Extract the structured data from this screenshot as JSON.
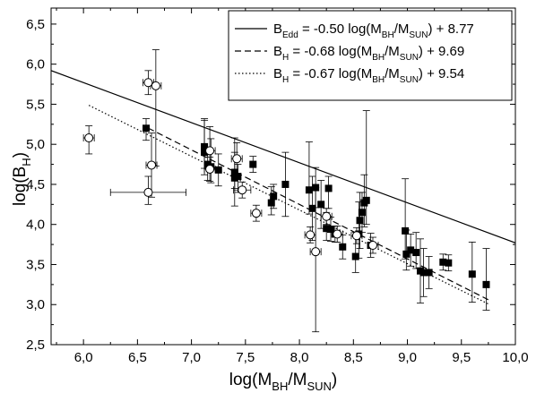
{
  "chart_data": {
    "type": "scatter",
    "xlabel": "log(M",
    "xlabel_sub": "BH",
    "xlabel_mid": "/M",
    "xlabel_sub2": "SUN",
    "xlabel_end": ")",
    "ylabel": "log(B",
    "ylabel_sub": "H",
    "ylabel_end": ")",
    "xlim": [
      5.7,
      10.0
    ],
    "ylim": [
      2.5,
      6.7
    ],
    "x_ticks": [
      6.0,
      6.5,
      7.0,
      7.5,
      8.0,
      8.5,
      9.0,
      9.5,
      10.0
    ],
    "x_tick_labels": [
      "6,0",
      "6,5",
      "7,0",
      "7,5",
      "8,0",
      "8,5",
      "9,0",
      "9,5",
      "10,0"
    ],
    "y_ticks": [
      2.5,
      3.0,
      3.5,
      4.0,
      4.5,
      5.0,
      5.5,
      6.0,
      6.5
    ],
    "y_tick_labels": [
      "2,5",
      "3,0",
      "3,5",
      "4,0",
      "4,5",
      "5,0",
      "5,5",
      "6,0",
      "6,5"
    ],
    "legend": [
      {
        "style": "solid",
        "p1": "B",
        "s1": "Edd",
        "p2": " = -0.50 log(M",
        "s2": "BH",
        "p3": "/M",
        "s3": "SUN",
        "p4": ") + 8.77"
      },
      {
        "style": "dashed",
        "p1": "B",
        "s1": "H",
        "p2": " = -0.68 log(M",
        "s2": "BH",
        "p3": "/M",
        "s3": "SUN",
        "p4": ") + 9.69"
      },
      {
        "style": "dotted",
        "p1": "B",
        "s1": "H",
        "p2": " = -0.67 log(M",
        "s2": "BH",
        "p3": "/M",
        "s3": "SUN",
        "p4": ") + 9.54"
      }
    ],
    "lines": [
      {
        "style": "solid",
        "slope": -0.5,
        "intercept": 8.77,
        "x_range": [
          5.7,
          10.0
        ]
      },
      {
        "style": "dashed",
        "slope": -0.68,
        "intercept": 9.69,
        "x_range": [
          6.6,
          9.75
        ]
      },
      {
        "style": "dotted",
        "slope": -0.67,
        "intercept": 9.54,
        "x_range": [
          6.05,
          9.75
        ]
      }
    ],
    "series": [
      {
        "marker": "filled-square",
        "points": [
          {
            "x": 6.58,
            "y": 5.2,
            "yerr": [
              0.15,
              0.12
            ]
          },
          {
            "x": 7.12,
            "y": 4.97,
            "yerr": [
              0.35,
              0.35
            ]
          },
          {
            "x": 7.12,
            "y": 4.9,
            "yerr": [
              0.2,
              0.4
            ]
          },
          {
            "x": 7.15,
            "y": 4.75,
            "yerr": [
              0.2,
              0.2
            ]
          },
          {
            "x": 7.18,
            "y": 4.72,
            "yerr": [
              0.2,
              0.35
            ]
          },
          {
            "x": 7.25,
            "y": 4.68,
            "yerr": [
              0.2,
              0.2
            ]
          },
          {
            "x": 7.4,
            "y": 4.65,
            "yerr": [
              0.2,
              0.25
            ]
          },
          {
            "x": 7.4,
            "y": 4.58,
            "yerr": [
              0.35,
              0.5
            ]
          },
          {
            "x": 7.43,
            "y": 4.6,
            "yerr": [
              0.2,
              0.15
            ]
          },
          {
            "x": 7.57,
            "y": 4.75,
            "yerr": [
              0.1,
              0.1
            ]
          },
          {
            "x": 7.74,
            "y": 4.27,
            "yerr": [
              0.15,
              0.2
            ]
          },
          {
            "x": 7.76,
            "y": 4.35,
            "yerr": [
              0.15,
              0.15
            ]
          },
          {
            "x": 7.87,
            "y": 4.5,
            "yerr": [
              0.4,
              0.4
            ]
          },
          {
            "x": 8.09,
            "y": 4.43,
            "yerr": [
              0.3,
              0.6
            ]
          },
          {
            "x": 8.12,
            "y": 4.2,
            "yerr": [
              0.4,
              0.4
            ]
          },
          {
            "x": 8.15,
            "y": 4.46,
            "yerr": [
              0.25,
              0.25
            ]
          },
          {
            "x": 8.2,
            "y": 4.25,
            "yerr": [
              0.3,
              0.3
            ]
          },
          {
            "x": 8.25,
            "y": 3.95,
            "yerr": [
              0.15,
              0.2
            ]
          },
          {
            "x": 8.27,
            "y": 4.45,
            "yerr": [
              0.25,
              0.15
            ]
          },
          {
            "x": 8.29,
            "y": 3.94,
            "yerr": [
              0.15,
              0.15
            ]
          },
          {
            "x": 8.33,
            "y": 3.88,
            "yerr": [
              0.1,
              0.1
            ]
          },
          {
            "x": 8.4,
            "y": 3.72,
            "yerr": [
              0.15,
              0.15
            ]
          },
          {
            "x": 8.52,
            "y": 3.6,
            "yerr": [
              0.2,
              0.3
            ]
          },
          {
            "x": 8.55,
            "y": 3.88,
            "yerr": [
              0.3,
              0.4
            ]
          },
          {
            "x": 8.56,
            "y": 4.05,
            "yerr": [
              0.35,
              0.35
            ]
          },
          {
            "x": 8.58,
            "y": 4.15,
            "yerr": [
              0.25,
              0.25
            ]
          },
          {
            "x": 8.6,
            "y": 4.27,
            "yerr": [
              0.3,
              0.35
            ]
          },
          {
            "x": 8.62,
            "y": 4.3,
            "yerr": [
              0.3,
              1.12
            ]
          },
          {
            "x": 8.66,
            "y": 3.74,
            "yerr": [
              0.15,
              0.15
            ]
          },
          {
            "x": 8.98,
            "y": 3.92,
            "yerr": [
              0.35,
              0.65
            ]
          },
          {
            "x": 8.99,
            "y": 3.63,
            "yerr": [
              0.2,
              0.3
            ]
          },
          {
            "x": 9.03,
            "y": 3.68,
            "yerr": [
              0.2,
              0.2
            ]
          },
          {
            "x": 9.08,
            "y": 3.65,
            "yerr": [
              0.2,
              0.25
            ]
          },
          {
            "x": 9.12,
            "y": 3.42,
            "yerr": [
              0.4,
              0.4
            ]
          },
          {
            "x": 9.15,
            "y": 3.4,
            "yerr": [
              0.3,
              0.3
            ]
          },
          {
            "x": 9.2,
            "y": 3.4,
            "yerr": [
              0.2,
              0.2
            ]
          },
          {
            "x": 9.33,
            "y": 3.53,
            "yerr": [
              0.1,
              0.1
            ]
          },
          {
            "x": 9.38,
            "y": 3.52,
            "yerr": [
              0.1,
              0.1
            ]
          },
          {
            "x": 9.6,
            "y": 3.38,
            "yerr": [
              0.35,
              0.4
            ]
          },
          {
            "x": 9.73,
            "y": 3.25,
            "yerr": [
              0.32,
              0.45
            ]
          }
        ]
      },
      {
        "marker": "open-circle",
        "points": [
          {
            "x": 6.05,
            "y": 5.08,
            "yerr": [
              0.2,
              0.15
            ],
            "xerr": [
              0.05,
              0.05
            ]
          },
          {
            "x": 6.6,
            "y": 5.77,
            "yerr": [
              0.15,
              0.15
            ],
            "xerr": [
              0.05,
              0.05
            ]
          },
          {
            "x": 6.6,
            "y": 4.4,
            "yerr": [
              0.15,
              0.2
            ],
            "xerr": [
              0.35,
              0.35
            ]
          },
          {
            "x": 6.63,
            "y": 4.74,
            "yerr": [
              0.4,
              0.4
            ],
            "xerr": [
              0.05,
              0.05
            ]
          },
          {
            "x": 6.67,
            "y": 5.73,
            "yerr": [
              1.0,
              0.45
            ],
            "xerr": [
              0.05,
              0.05
            ]
          },
          {
            "x": 7.17,
            "y": 4.92,
            "yerr": [
              0.2,
              0.3
            ],
            "xerr": [
              0.05,
              0.05
            ]
          },
          {
            "x": 7.17,
            "y": 4.69,
            "yerr": [
              0.15,
              0.15
            ],
            "xerr": [
              0.05,
              0.05
            ]
          },
          {
            "x": 7.42,
            "y": 4.82,
            "yerr": [
              0.2,
              0.2
            ],
            "xerr": [
              0.05,
              0.05
            ]
          },
          {
            "x": 7.47,
            "y": 4.43,
            "yerr": [
              0.1,
              0.1
            ],
            "xerr": [
              0.08,
              0.08
            ]
          },
          {
            "x": 7.6,
            "y": 4.14,
            "yerr": [
              0.1,
              0.1
            ],
            "xerr": [
              0.05,
              0.05
            ]
          },
          {
            "x": 8.1,
            "y": 3.87,
            "yerr": [
              0.1,
              0.1
            ],
            "xerr": [
              0.05,
              0.05
            ]
          },
          {
            "x": 8.15,
            "y": 3.66,
            "yerr": [
              1.0,
              0.8
            ],
            "xerr": [
              0.05,
              0.05
            ]
          },
          {
            "x": 8.25,
            "y": 4.1,
            "yerr": [
              0.1,
              0.1
            ],
            "xerr": [
              0.05,
              0.05
            ]
          },
          {
            "x": 8.35,
            "y": 3.88,
            "yerr": [
              0.1,
              0.1
            ],
            "xerr": [
              0.05,
              0.05
            ]
          },
          {
            "x": 8.53,
            "y": 3.86,
            "yerr": [
              0.1,
              0.1
            ],
            "xerr": [
              0.05,
              0.05
            ]
          },
          {
            "x": 8.68,
            "y": 3.74,
            "yerr": [
              0.1,
              0.1
            ],
            "xerr": [
              0.05,
              0.05
            ]
          }
        ]
      }
    ]
  }
}
